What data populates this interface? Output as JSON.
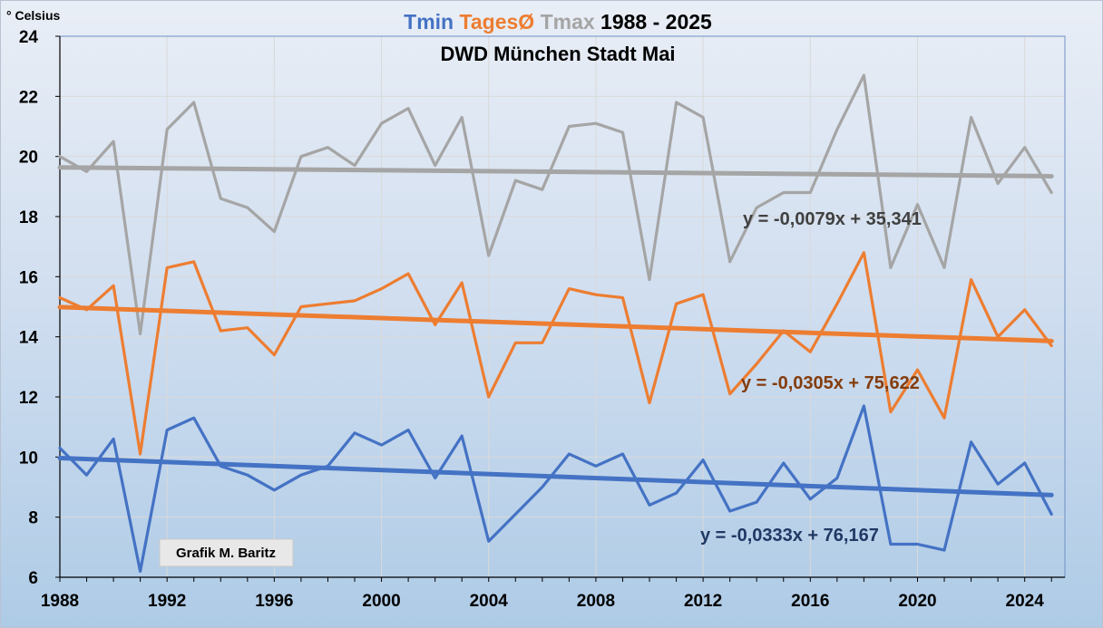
{
  "chart_data": {
    "type": "line",
    "title": {
      "tmin": "Tmin",
      "mean": "TagesØ",
      "tmax": "Tmax",
      "period": "1988 - 2025"
    },
    "subtitle": "DWD München Stadt Mai",
    "ylabel": "° Celsius",
    "xlim": [
      1988,
      2025.5
    ],
    "ylim": [
      6,
      24
    ],
    "yticks": [
      6,
      8,
      10,
      12,
      14,
      16,
      18,
      20,
      22,
      24
    ],
    "xticks": [
      1988,
      1992,
      1996,
      2000,
      2004,
      2008,
      2012,
      2016,
      2020,
      2024
    ],
    "grid": true,
    "x": [
      1988,
      1989,
      1990,
      1991,
      1992,
      1993,
      1994,
      1995,
      1996,
      1997,
      1998,
      1999,
      2000,
      2001,
      2002,
      2003,
      2004,
      2005,
      2006,
      2007,
      2008,
      2009,
      2010,
      2011,
      2012,
      2013,
      2014,
      2015,
      2016,
      2017,
      2018,
      2019,
      2020,
      2021,
      2022,
      2023,
      2024,
      2025
    ],
    "series": [
      {
        "key": "tmax",
        "name": "Tmax",
        "color": "#a5a5a5",
        "values": [
          20.0,
          19.5,
          20.5,
          14.1,
          20.9,
          21.8,
          18.6,
          18.3,
          17.5,
          20.0,
          20.3,
          19.7,
          21.1,
          21.6,
          19.7,
          21.3,
          16.7,
          19.2,
          18.9,
          21.0,
          21.1,
          20.8,
          15.9,
          21.8,
          21.3,
          16.5,
          18.3,
          18.8,
          18.8,
          20.9,
          22.7,
          16.3,
          18.4,
          16.3,
          21.3,
          19.1,
          20.3,
          18.8
        ],
        "trend": {
          "slope": -0.0079,
          "intercept": 35.341,
          "label": "y = -0,0079x + 35,341",
          "color": "#404040"
        }
      },
      {
        "key": "mean",
        "name": "TagesØ",
        "color": "#ed7d31",
        "values": [
          15.3,
          14.9,
          15.7,
          10.1,
          16.3,
          16.5,
          14.2,
          14.3,
          13.4,
          15.0,
          15.1,
          15.2,
          15.6,
          16.1,
          14.4,
          15.8,
          12.0,
          13.8,
          13.8,
          15.6,
          15.4,
          15.3,
          11.8,
          15.1,
          15.4,
          12.1,
          13.1,
          14.2,
          13.5,
          15.1,
          16.8,
          11.5,
          12.9,
          11.3,
          15.9,
          14.0,
          14.9,
          13.7
        ],
        "trend": {
          "slope": -0.0305,
          "intercept": 75.622,
          "label": "y = -0,0305x + 75,622",
          "color": "#843c0c"
        }
      },
      {
        "key": "tmin",
        "name": "Tmin",
        "color": "#4472c4",
        "values": [
          10.3,
          9.4,
          10.6,
          6.2,
          10.9,
          11.3,
          9.7,
          9.4,
          8.9,
          9.4,
          9.7,
          10.8,
          10.4,
          10.9,
          9.3,
          10.7,
          7.2,
          8.1,
          9.0,
          10.1,
          9.7,
          10.1,
          8.4,
          8.8,
          9.9,
          8.2,
          8.5,
          9.8,
          8.6,
          9.3,
          11.7,
          7.1,
          7.1,
          6.9,
          10.5,
          9.1,
          9.8,
          8.1
        ],
        "trend": {
          "slope": -0.0333,
          "intercept": 76.167,
          "label": "y = -0,0333x + 76,167",
          "color": "#203864"
        }
      }
    ],
    "annotations": {
      "credit": "Grafik M. Baritz"
    }
  }
}
